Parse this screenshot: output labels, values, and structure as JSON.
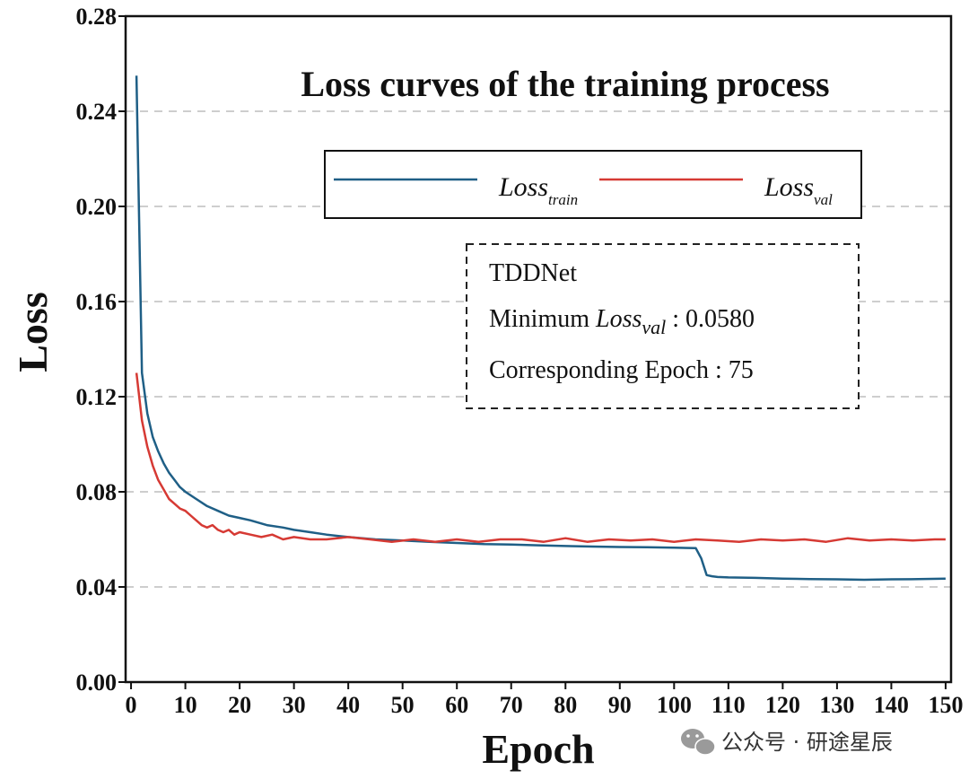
{
  "watermark": {
    "text": "公众号 · 研途星辰"
  },
  "annotation": {
    "model": "TDDNet",
    "min_prefix": "Minimum ",
    "min_loss_base": "Loss",
    "min_loss_sub": "val",
    "min_value": " : 0.0580",
    "epoch_line": "Corresponding Epoch : 75"
  },
  "colors": {
    "train": "#1f5f86",
    "val": "#d63a34",
    "grid": "#bdbdbd"
  },
  "chart_data": {
    "type": "line",
    "title": "Loss curves of the training process",
    "xlabel": "Epoch",
    "ylabel": "Loss",
    "xlim": [
      -1,
      151
    ],
    "ylim": [
      0.0,
      0.28
    ],
    "xticks": [
      0,
      10,
      20,
      30,
      40,
      50,
      60,
      70,
      80,
      90,
      100,
      110,
      120,
      130,
      140,
      150
    ],
    "xtick_labels": [
      "0",
      "10",
      "20",
      "30",
      "40",
      "50",
      "60",
      "70",
      "80",
      "90",
      "100",
      "110",
      "120",
      "130",
      "140",
      "150"
    ],
    "yticks": [
      0.0,
      0.04,
      0.08,
      0.12,
      0.16,
      0.2,
      0.24,
      0.28
    ],
    "ytick_labels": [
      "0.00",
      "0.04",
      "0.08",
      "0.12",
      "0.16",
      "0.20",
      "0.24",
      "0.28"
    ],
    "grid": "horizontal dashed",
    "legend_position": "top-right",
    "series": [
      {
        "name_base": "Loss",
        "name_sub": "train",
        "x": [
          1,
          2,
          3,
          4,
          5,
          6,
          7,
          8,
          9,
          10,
          12,
          14,
          16,
          18,
          20,
          22,
          25,
          28,
          30,
          33,
          36,
          40,
          45,
          50,
          55,
          60,
          65,
          70,
          75,
          80,
          85,
          90,
          95,
          100,
          104,
          105,
          106,
          107,
          108,
          110,
          115,
          120,
          125,
          130,
          135,
          140,
          145,
          150
        ],
        "values": [
          0.255,
          0.13,
          0.113,
          0.103,
          0.097,
          0.092,
          0.088,
          0.085,
          0.082,
          0.08,
          0.077,
          0.074,
          0.072,
          0.07,
          0.069,
          0.068,
          0.066,
          0.065,
          0.064,
          0.063,
          0.062,
          0.061,
          0.06,
          0.0595,
          0.059,
          0.0585,
          0.058,
          0.0578,
          0.0575,
          0.0572,
          0.057,
          0.0568,
          0.0567,
          0.0565,
          0.0563,
          0.052,
          0.045,
          0.0445,
          0.0442,
          0.044,
          0.0438,
          0.0435,
          0.0433,
          0.0432,
          0.043,
          0.0432,
          0.0433,
          0.0435
        ]
      },
      {
        "name_base": "Loss",
        "name_sub": "val",
        "x": [
          1,
          2,
          3,
          4,
          5,
          6,
          7,
          8,
          9,
          10,
          11,
          12,
          13,
          14,
          15,
          16,
          17,
          18,
          19,
          20,
          22,
          24,
          26,
          28,
          30,
          33,
          36,
          40,
          44,
          48,
          52,
          56,
          60,
          64,
          68,
          72,
          76,
          80,
          84,
          88,
          92,
          96,
          100,
          104,
          108,
          112,
          116,
          120,
          124,
          128,
          132,
          136,
          140,
          144,
          148,
          150
        ],
        "values": [
          0.13,
          0.11,
          0.099,
          0.091,
          0.085,
          0.081,
          0.077,
          0.075,
          0.073,
          0.072,
          0.07,
          0.068,
          0.066,
          0.065,
          0.066,
          0.064,
          0.063,
          0.064,
          0.062,
          0.063,
          0.062,
          0.061,
          0.062,
          0.06,
          0.061,
          0.06,
          0.06,
          0.061,
          0.06,
          0.059,
          0.06,
          0.059,
          0.06,
          0.059,
          0.06,
          0.06,
          0.059,
          0.0605,
          0.059,
          0.06,
          0.0595,
          0.06,
          0.059,
          0.06,
          0.0595,
          0.059,
          0.06,
          0.0595,
          0.06,
          0.059,
          0.0605,
          0.0595,
          0.06,
          0.0595,
          0.06,
          0.06
        ]
      }
    ]
  }
}
